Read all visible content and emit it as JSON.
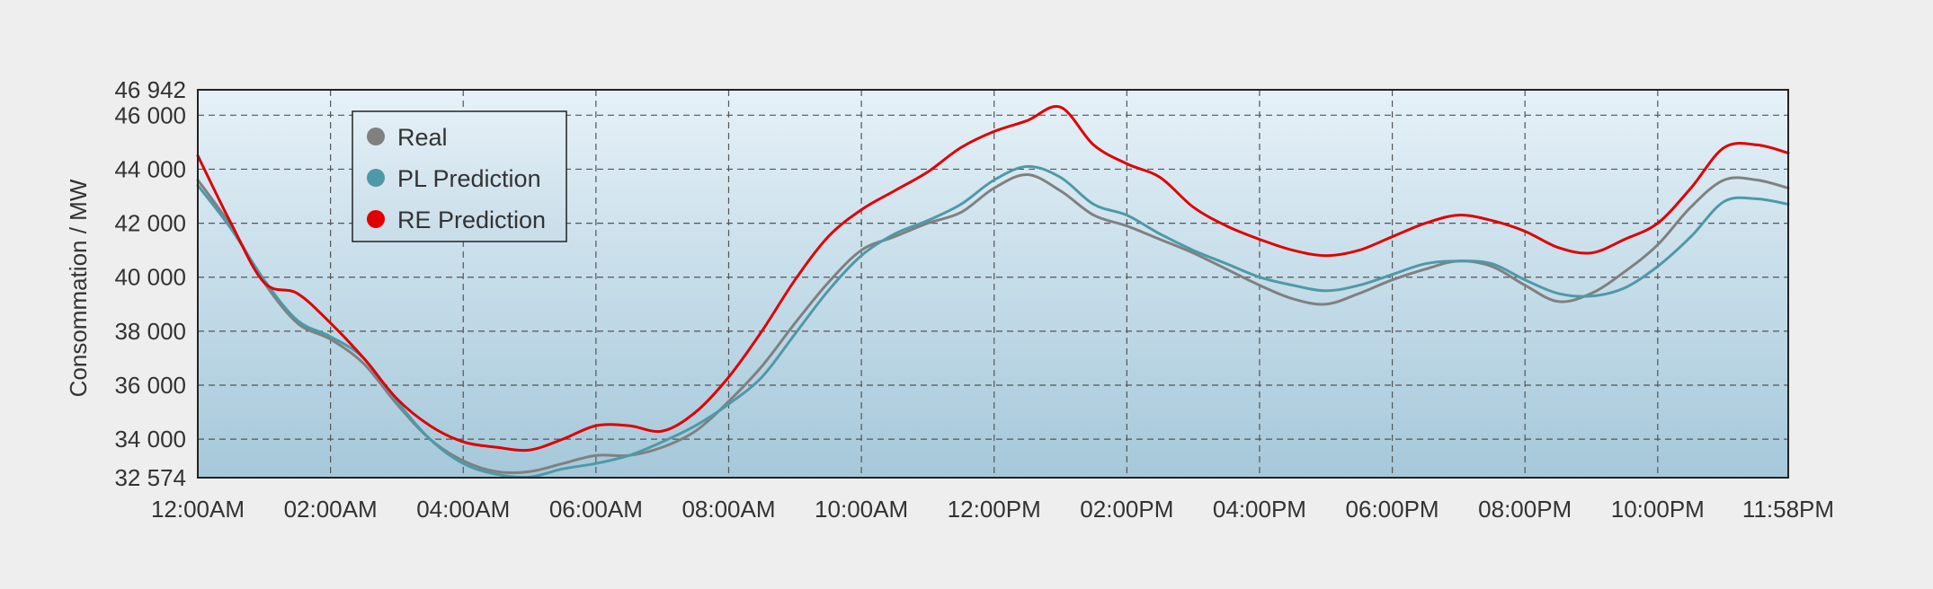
{
  "chart_data": {
    "type": "line",
    "ylabel": "Consommation / MW",
    "ylim": [
      32574,
      46942
    ],
    "xlim_hours": [
      0,
      23.967
    ],
    "x_tick_labels": [
      "12:00AM",
      "02:00AM",
      "04:00AM",
      "06:00AM",
      "08:00AM",
      "10:00AM",
      "12:00PM",
      "02:00PM",
      "04:00PM",
      "06:00PM",
      "08:00PM",
      "10:00PM",
      "11:58PM"
    ],
    "x_tick_hours": [
      0,
      2,
      4,
      6,
      8,
      10,
      12,
      14,
      16,
      18,
      20,
      22,
      23.967
    ],
    "y_tick_values": [
      32574,
      34000,
      36000,
      38000,
      40000,
      42000,
      44000,
      46000,
      46942
    ],
    "y_tick_labels": [
      "32 574",
      "34 000",
      "36 000",
      "38 000",
      "40 000",
      "42 000",
      "44 000",
      "46 000",
      "46 942"
    ],
    "grid": true,
    "legend_position": "top-left",
    "series": [
      {
        "name": "Real",
        "color": "#808080",
        "x": [
          0,
          0.5,
          1,
          1.5,
          2,
          2.5,
          3,
          3.5,
          4,
          4.5,
          5,
          5.5,
          6,
          6.5,
          7,
          7.5,
          8,
          8.5,
          9,
          9.5,
          10,
          10.5,
          11,
          11.5,
          12,
          12.5,
          13,
          13.5,
          14,
          14.5,
          15,
          15.5,
          16,
          16.5,
          17,
          17.5,
          18,
          18.5,
          19,
          19.5,
          20,
          20.5,
          21,
          21.5,
          22,
          22.5,
          23,
          23.5,
          23.967
        ],
        "values": [
          43600,
          41900,
          39800,
          38300,
          37700,
          36800,
          35300,
          34000,
          33200,
          32800,
          32800,
          33100,
          33400,
          33400,
          33700,
          34300,
          35400,
          36700,
          38300,
          39800,
          41000,
          41500,
          42000,
          42400,
          43300,
          43800,
          43200,
          42300,
          41900,
          41400,
          40900,
          40300,
          39700,
          39200,
          39000,
          39400,
          39900,
          40300,
          40600,
          40400,
          39700,
          39100,
          39400,
          40200,
          41200,
          42600,
          43600,
          43600,
          43300
        ]
      },
      {
        "name": "PL Prediction",
        "color": "#4e99a8",
        "x": [
          0,
          0.5,
          1,
          1.5,
          2,
          2.5,
          3,
          3.5,
          4,
          4.5,
          5,
          5.5,
          6,
          6.5,
          7,
          7.5,
          8,
          8.5,
          9,
          9.5,
          10,
          10.5,
          11,
          11.5,
          12,
          12.5,
          13,
          13.5,
          14,
          14.5,
          15,
          15.5,
          16,
          16.5,
          17,
          17.5,
          18,
          18.5,
          19,
          19.5,
          20,
          20.5,
          21,
          21.5,
          22,
          22.5,
          23,
          23.5,
          23.967
        ],
        "values": [
          43400,
          41800,
          39900,
          38400,
          37800,
          37000,
          35400,
          34000,
          33100,
          32700,
          32600,
          32900,
          33100,
          33400,
          33900,
          34500,
          35300,
          36300,
          37900,
          39500,
          40800,
          41600,
          42100,
          42700,
          43600,
          44100,
          43700,
          42700,
          42300,
          41600,
          41000,
          40500,
          40000,
          39700,
          39500,
          39700,
          40100,
          40500,
          40600,
          40500,
          39900,
          39400,
          39300,
          39600,
          40400,
          41500,
          42800,
          42900,
          42700
        ]
      },
      {
        "name": "RE Prediction",
        "color": "#e00000",
        "x": [
          0,
          0.5,
          1,
          1.5,
          2,
          2.5,
          3,
          3.5,
          4,
          4.5,
          5,
          5.5,
          6,
          6.5,
          7,
          7.5,
          8,
          8.5,
          9,
          9.5,
          10,
          10.5,
          11,
          11.5,
          12,
          12.5,
          13,
          13.5,
          14,
          14.5,
          15,
          15.5,
          16,
          16.5,
          17,
          17.5,
          18,
          18.5,
          19,
          19.5,
          20,
          20.5,
          21,
          21.5,
          22,
          22.5,
          23,
          23.5,
          23.967
        ],
        "values": [
          44500,
          42000,
          39800,
          39400,
          38300,
          37000,
          35500,
          34500,
          33900,
          33700,
          33600,
          34000,
          34500,
          34500,
          34300,
          35000,
          36300,
          38000,
          39900,
          41500,
          42500,
          43200,
          43900,
          44800,
          45400,
          45800,
          46300,
          44900,
          44200,
          43700,
          42600,
          41900,
          41400,
          41000,
          40800,
          41000,
          41500,
          42000,
          42300,
          42100,
          41700,
          41100,
          40900,
          41400,
          42000,
          43300,
          44800,
          44900,
          44600
        ]
      }
    ]
  }
}
